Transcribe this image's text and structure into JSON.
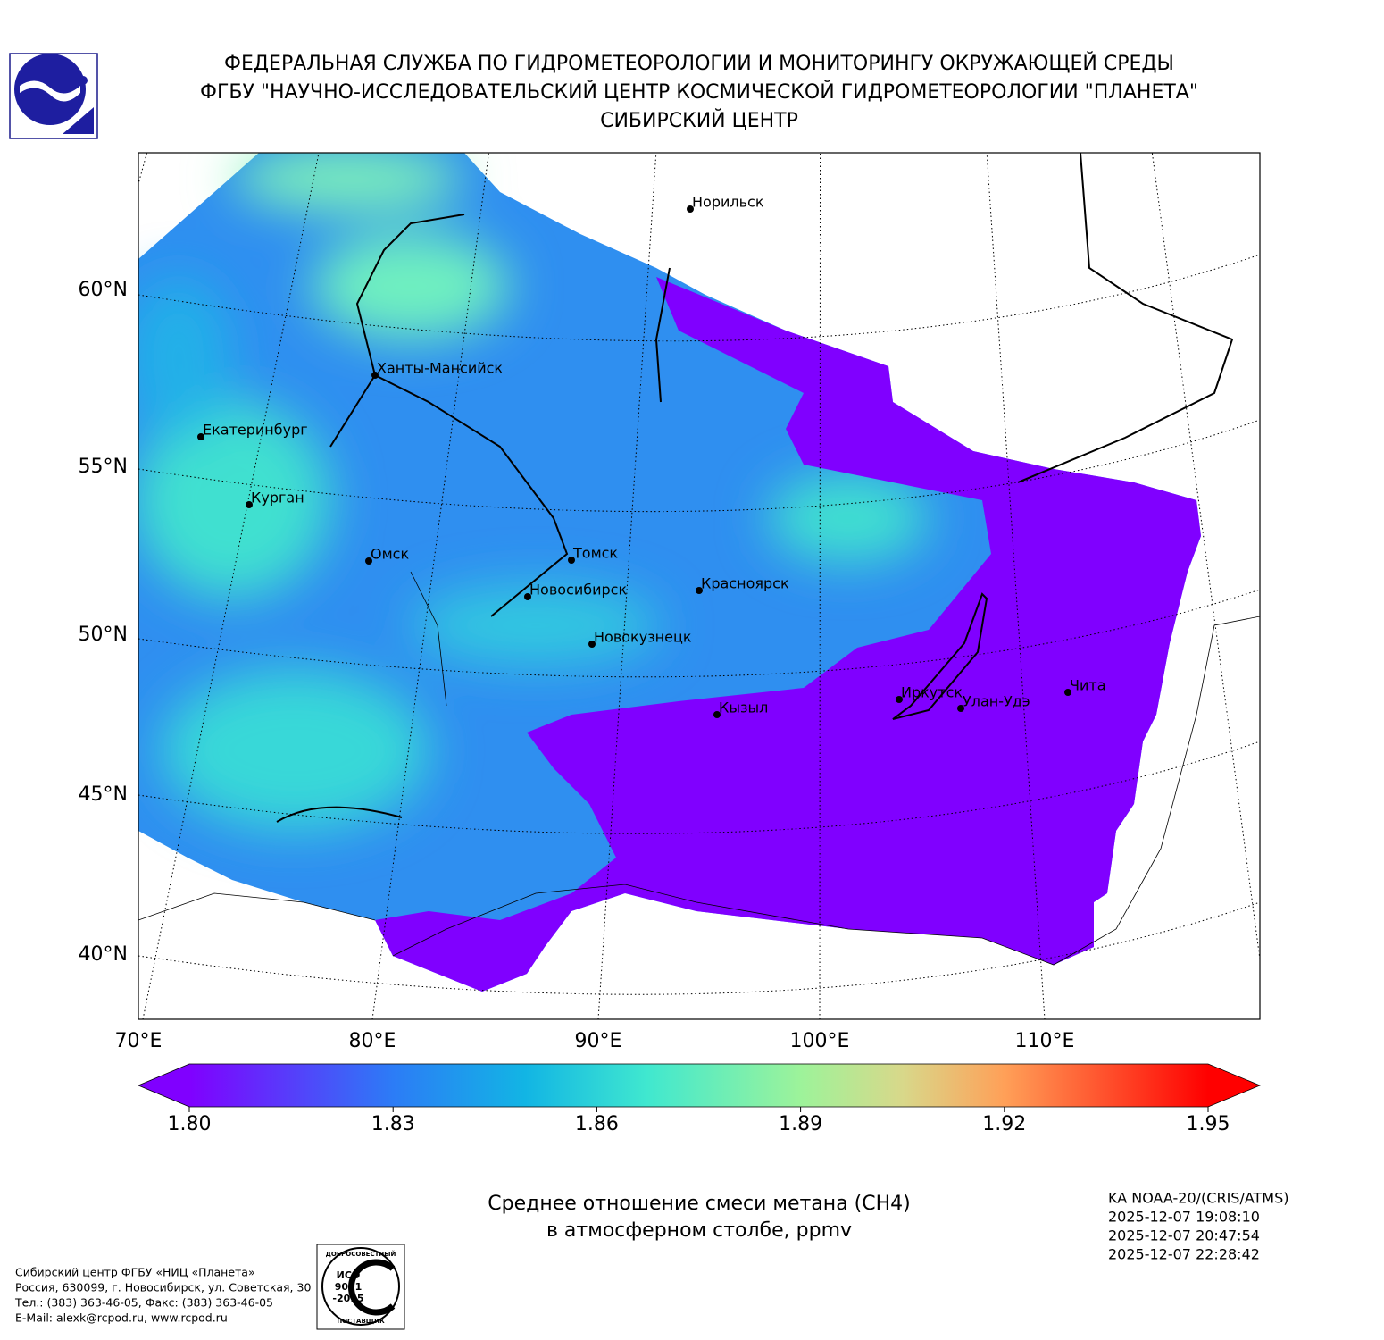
{
  "header": {
    "lines": [
      "ФЕДЕРАЛЬНАЯ СЛУЖБА ПО ГИДРОМЕТЕОРОЛОГИИ И МОНИТОРИНГУ ОКРУЖАЮЩЕЙ СРЕДЫ",
      "ФГБУ \"НАУЧНО-ИССЛЕДОВАТЕЛЬСКИЙ ЦЕНТР КОСМИЧЕСКОЙ ГИДРОМЕТЕОРОЛОГИИ \"ПЛАНЕТА\"",
      "СИБИРСКИЙ ЦЕНТР"
    ]
  },
  "map": {
    "lat_labels": [
      "60°N",
      "55°N",
      "50°N",
      "45°N",
      "40°N"
    ],
    "lon_labels": [
      "70°E",
      "80°E",
      "90°E",
      "100°E",
      "110°E"
    ],
    "cities": [
      "Норильск",
      "Ханты-Мансийск",
      "Екатеринбург",
      "Курган",
      "Омск",
      "Томск",
      "Новосибирск",
      "Красноярск",
      "Новокузнецк",
      "Кызыл",
      "Иркутск",
      "Улан-Удэ",
      "Чита"
    ]
  },
  "colorbar": {
    "ticks": [
      {
        "value": 1.8,
        "label": "1.80"
      },
      {
        "value": 1.83,
        "label": "1.83"
      },
      {
        "value": 1.86,
        "label": "1.86"
      },
      {
        "value": 1.89,
        "label": "1.89"
      },
      {
        "value": 1.92,
        "label": "1.92"
      },
      {
        "value": 1.95,
        "label": "1.95"
      }
    ]
  },
  "caption": {
    "lines": [
      "Среднее отношение смеси метана (CH4)",
      "в атмосферном столбе, ppmv"
    ]
  },
  "satellite": {
    "lines": [
      "KA NOAA-20/(CRIS/ATMS)",
      "2025-12-07 19:08:10",
      "2025-12-07 20:47:54",
      "2025-12-07 22:28:42"
    ]
  },
  "footer": {
    "lines": [
      "Сибирский центр ФГБУ «НИЦ «Планета»",
      "Россия, 630099, г. Новосибирск, ул. Советская, 30",
      "Тел.: (383) 363-46-05, Факс: (383) 363-46-05",
      "E-Mail: alexk@rcpod.ru, www.rcpod.ru"
    ]
  },
  "iso_badge": {
    "top": "ДОБРОСОВЕСТНЫЙ",
    "lines": [
      "ИСО",
      "9001",
      "-2015"
    ],
    "bottom": "ПОСТАВЩИК"
  }
}
